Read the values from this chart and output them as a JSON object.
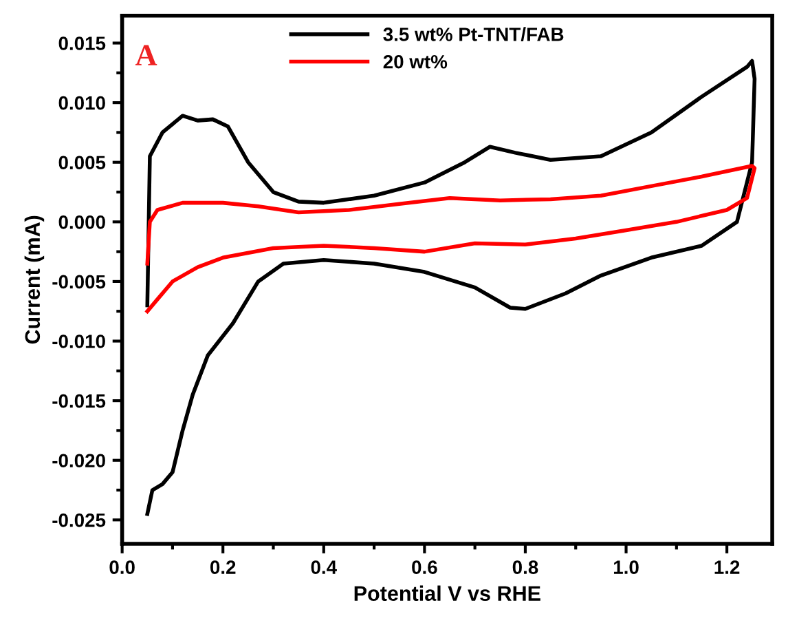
{
  "chart_data": {
    "type": "line",
    "xlabel": "Potential V vs RHE",
    "ylabel": "Current (mA)",
    "annotations": [
      "A"
    ],
    "legend": "top",
    "grid": false,
    "marker": "none",
    "line_style": "solid",
    "xlim": [
      0,
      1.29
    ],
    "ylim": [
      -0.027,
      0.0173
    ],
    "xticks": [
      {
        "value": 0,
        "label": "0.0"
      },
      {
        "value": 0.2,
        "label": "0.2"
      },
      {
        "value": 0.4,
        "label": "0.4"
      },
      {
        "value": 0.6,
        "label": "0.6"
      },
      {
        "value": 0.8,
        "label": "0.8"
      },
      {
        "value": 1.0,
        "label": "1.0"
      },
      {
        "value": 1.2,
        "label": "1.2"
      }
    ],
    "yticks": [
      {
        "value": -0.025,
        "label": "-0.025"
      },
      {
        "value": -0.02,
        "label": "-0.020"
      },
      {
        "value": -0.015,
        "label": "-0.015"
      },
      {
        "value": -0.01,
        "label": "-0.010"
      },
      {
        "value": -0.005,
        "label": "-0.005"
      },
      {
        "value": 0,
        "label": "0.000"
      },
      {
        "value": 0.005,
        "label": "0.005"
      },
      {
        "value": 0.01,
        "label": "0.010"
      },
      {
        "value": 0.015,
        "label": "0.015"
      }
    ],
    "series": [
      {
        "name": "3.5 wt% Pt-TNT/FAB",
        "color": "#000000",
        "x": [
          0.05,
          0.055,
          0.08,
          0.12,
          0.15,
          0.18,
          0.21,
          0.25,
          0.3,
          0.35,
          0.4,
          0.5,
          0.6,
          0.68,
          0.73,
          0.78,
          0.85,
          0.95,
          1.05,
          1.15,
          1.24,
          1.25,
          1.255,
          1.25,
          1.22,
          1.15,
          1.05,
          0.95,
          0.88,
          0.8,
          0.77,
          0.7,
          0.6,
          0.5,
          0.4,
          0.32,
          0.27,
          0.22,
          0.17,
          0.14,
          0.12,
          0.1,
          0.08,
          0.06,
          0.05
        ],
        "values": [
          -0.007,
          0.0055,
          0.0075,
          0.0089,
          0.0085,
          0.0086,
          0.008,
          0.005,
          0.0025,
          0.0017,
          0.0016,
          0.0022,
          0.0033,
          0.005,
          0.0063,
          0.0058,
          0.0052,
          0.0055,
          0.0075,
          0.0105,
          0.013,
          0.0135,
          0.012,
          0.005,
          0.0,
          -0.002,
          -0.003,
          -0.0045,
          -0.006,
          -0.0073,
          -0.0072,
          -0.0055,
          -0.0042,
          -0.0035,
          -0.0032,
          -0.0035,
          -0.005,
          -0.0085,
          -0.0112,
          -0.0145,
          -0.0175,
          -0.021,
          -0.022,
          -0.0225,
          -0.0245
        ]
      },
      {
        "name": "20 wt%",
        "color": "#ff0000",
        "x": [
          0.05,
          0.055,
          0.07,
          0.12,
          0.2,
          0.27,
          0.35,
          0.45,
          0.55,
          0.65,
          0.75,
          0.85,
          0.95,
          1.05,
          1.15,
          1.25,
          1.255,
          1.24,
          1.2,
          1.1,
          1.0,
          0.9,
          0.8,
          0.7,
          0.6,
          0.5,
          0.4,
          0.3,
          0.2,
          0.15,
          0.1,
          0.07,
          0.05
        ],
        "values": [
          -0.0035,
          0.0,
          0.001,
          0.0016,
          0.0016,
          0.0013,
          0.0008,
          0.001,
          0.0015,
          0.002,
          0.0018,
          0.0019,
          0.0022,
          0.003,
          0.0038,
          0.0047,
          0.0045,
          0.002,
          0.001,
          0.0,
          -0.0007,
          -0.0014,
          -0.0019,
          -0.0018,
          -0.0025,
          -0.0022,
          -0.002,
          -0.0022,
          -0.003,
          -0.0038,
          -0.005,
          -0.0065,
          -0.0075
        ]
      }
    ]
  }
}
